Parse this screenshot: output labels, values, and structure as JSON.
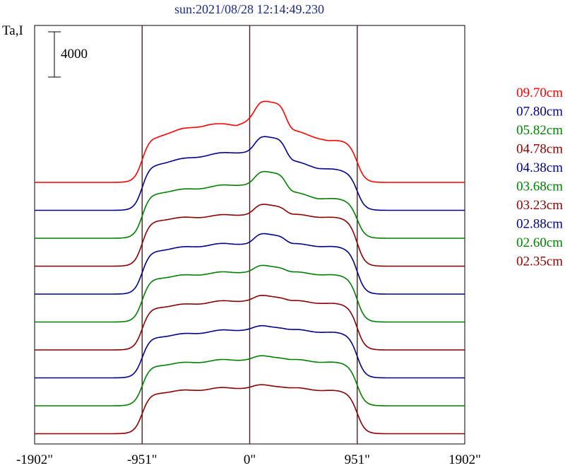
{
  "chart_data": {
    "type": "line",
    "title": "sun:2021/08/28 12:14:49.230",
    "ylabel": "Ta,I",
    "scale_bar_label": "4000",
    "x_ticks": [
      "-1902\"",
      "-951\"",
      "0\"",
      "951\"",
      "1902\""
    ],
    "x_tick_values": [
      -1902,
      -951,
      0,
      951,
      1902
    ],
    "xlim": [
      -1902,
      1902
    ],
    "scale_bar_value": 4000,
    "reference_lines_x": [
      -951,
      0,
      951
    ],
    "series": [
      {
        "name": "09.70cm",
        "color": "#ff0000",
        "baseline": 0,
        "quiet": 1150,
        "peak": 12600,
        "dips": [
          {
            "x": -820,
            "v": 8300
          },
          {
            "x": -600,
            "v": 9050
          },
          {
            "x": -360,
            "v": 9500
          },
          {
            "x": -120,
            "v": 9300
          },
          {
            "x": 0,
            "v": 10000
          },
          {
            "x": 700,
            "v": 7450
          },
          {
            "x": 840,
            "v": 7600
          }
        ]
      },
      {
        "name": "07.80cm",
        "color": "#00008b",
        "baseline": 0,
        "quiet": 900,
        "peak": 11300,
        "dips": [
          {
            "x": -820,
            "v": 8100
          },
          {
            "x": -600,
            "v": 8500
          },
          {
            "x": -360,
            "v": 8900
          },
          {
            "x": 0,
            "v": 9250
          },
          {
            "x": 600,
            "v": 7250
          },
          {
            "x": 840,
            "v": 7050
          }
        ]
      },
      {
        "name": "05.82cm",
        "color": "#008000",
        "baseline": 0,
        "quiet": 800,
        "peak": 10200,
        "dips": [
          {
            "x": -820,
            "v": 7850
          },
          {
            "x": -450,
            "v": 8100
          },
          {
            "x": 0,
            "v": 8500
          },
          {
            "x": 600,
            "v": 6800
          }
        ]
      },
      {
        "name": "04.78cm",
        "color": "#8b0000",
        "baseline": 0,
        "quiet": 750,
        "peak": 9450,
        "dips": [
          {
            "x": -800,
            "v": 7900
          },
          {
            "x": -300,
            "v": 7950
          },
          {
            "x": 0,
            "v": 8150
          }
        ]
      },
      {
        "name": "04.38cm",
        "color": "#00008b",
        "baseline": 0,
        "quiet": 700,
        "peak": 9200,
        "dips": [
          {
            "x": -800,
            "v": 7500
          },
          {
            "x": -300,
            "v": 7800
          },
          {
            "x": 0,
            "v": 7900
          }
        ]
      },
      {
        "name": "03.68cm",
        "color": "#008000",
        "baseline": 0,
        "quiet": 650,
        "peak": 8600,
        "dips": [
          {
            "x": -700,
            "v": 7500
          },
          {
            "x": 0,
            "v": 7800
          }
        ]
      },
      {
        "name": "03.23cm",
        "color": "#8b0000",
        "baseline": 0,
        "quiet": 650,
        "peak": 8300,
        "dips": [
          {
            "x": -700,
            "v": 7300
          },
          {
            "x": 0,
            "v": 7700
          }
        ]
      },
      {
        "name": "02.88cm",
        "color": "#00008b",
        "baseline": 0,
        "quiet": 600,
        "peak": 7900,
        "dips": [
          {
            "x": -700,
            "v": 7000
          },
          {
            "x": 0,
            "v": 7500
          }
        ]
      },
      {
        "name": "02.60cm",
        "color": "#008000",
        "baseline": 0,
        "quiet": 600,
        "peak": 7600,
        "dips": [
          {
            "x": -700,
            "v": 6900
          },
          {
            "x": 0,
            "v": 7200
          }
        ]
      },
      {
        "name": "02.35cm",
        "color": "#8b0000",
        "baseline": 0,
        "quiet": 550,
        "peak": 7400,
        "dips": [
          {
            "x": -700,
            "v": 6900
          },
          {
            "x": 0,
            "v": 7100
          }
        ]
      }
    ],
    "grid": false,
    "legend_placement": "right"
  }
}
